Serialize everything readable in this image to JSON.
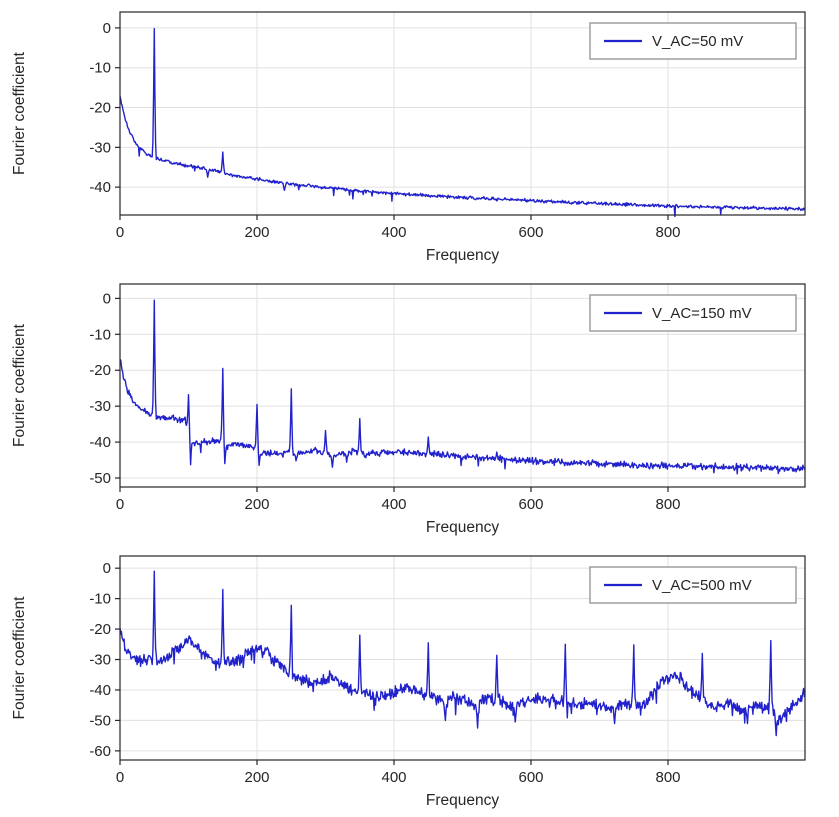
{
  "style": {
    "background": "#ffffff",
    "line_color": "#2222cc",
    "grid_color": "#e0e0e0",
    "axis_color": "#262626",
    "text_color": "#262626",
    "legend_border": "#909090",
    "legend_fill": "#ffffff"
  },
  "chart_data": [
    {
      "type": "line",
      "legend_label": "V_AC=50 mV",
      "xlabel": "Frequency",
      "ylabel": "Fourier coefficient",
      "xlim": [
        0,
        1000
      ],
      "ylim": [
        -47,
        4
      ],
      "xticks": [
        0,
        200,
        400,
        600,
        800
      ],
      "yticks": [
        0,
        -10,
        -20,
        -30,
        -40
      ],
      "grid": true,
      "legend_position": "top-right",
      "seed": 11,
      "noise": 0.5,
      "dip_prob": 0.015,
      "dip_depth": 2.5,
      "baseline": [
        [
          0,
          -17
        ],
        [
          3,
          -19.5
        ],
        [
          8,
          -23
        ],
        [
          15,
          -26.5
        ],
        [
          25,
          -29.5
        ],
        [
          38,
          -31.5
        ],
        [
          48,
          -32.5
        ],
        [
          60,
          -33.2
        ],
        [
          80,
          -34
        ],
        [
          100,
          -34.6
        ],
        [
          120,
          -35.2
        ],
        [
          140,
          -36
        ],
        [
          160,
          -36.8
        ],
        [
          180,
          -37.4
        ],
        [
          200,
          -38
        ],
        [
          230,
          -38.8
        ],
        [
          260,
          -39.4
        ],
        [
          300,
          -40.1
        ],
        [
          350,
          -40.9
        ],
        [
          400,
          -41.6
        ],
        [
          450,
          -42.1
        ],
        [
          500,
          -42.6
        ],
        [
          550,
          -43
        ],
        [
          600,
          -43.4
        ],
        [
          650,
          -43.8
        ],
        [
          700,
          -44.1
        ],
        [
          750,
          -44.4
        ],
        [
          800,
          -44.7
        ],
        [
          850,
          -44.9
        ],
        [
          900,
          -45.1
        ],
        [
          950,
          -45.3
        ],
        [
          1000,
          -45.5
        ]
      ],
      "peaks": [
        [
          50,
          -0.2
        ],
        [
          150,
          -31.2
        ]
      ],
      "dips": [
        [
          128,
          -37.5
        ],
        [
          240,
          -40.8
        ]
      ]
    },
    {
      "type": "line",
      "legend_label": "V_AC=150 mV",
      "xlabel": "Frequency",
      "ylabel": "Fourier coefficient",
      "xlim": [
        0,
        1000
      ],
      "ylim": [
        -52.5,
        4
      ],
      "xticks": [
        0,
        200,
        400,
        600,
        800
      ],
      "yticks": [
        0,
        -10,
        -20,
        -30,
        -40,
        -50
      ],
      "grid": true,
      "legend_position": "top-right",
      "seed": 22,
      "noise": 1.1,
      "dip_prob": 0.02,
      "dip_depth": 3,
      "baseline": [
        [
          0,
          -17
        ],
        [
          4,
          -21
        ],
        [
          10,
          -25
        ],
        [
          18,
          -28
        ],
        [
          28,
          -30.5
        ],
        [
          40,
          -32
        ],
        [
          55,
          -33
        ],
        [
          70,
          -33.3
        ],
        [
          85,
          -33.6
        ],
        [
          96,
          -34
        ],
        [
          106,
          -40.5
        ],
        [
          120,
          -40
        ],
        [
          135,
          -39.5
        ],
        [
          148,
          -39.8
        ],
        [
          157,
          -41
        ],
        [
          170,
          -40.5
        ],
        [
          185,
          -41
        ],
        [
          196,
          -41.5
        ],
        [
          206,
          -43.5
        ],
        [
          220,
          -43
        ],
        [
          235,
          -43.5
        ],
        [
          246,
          -42.5
        ],
        [
          256,
          -43.5
        ],
        [
          270,
          -42.8
        ],
        [
          285,
          -42.3
        ],
        [
          298,
          -43
        ],
        [
          312,
          -44
        ],
        [
          325,
          -43
        ],
        [
          340,
          -42.6
        ],
        [
          356,
          -43.5
        ],
        [
          375,
          -43
        ],
        [
          400,
          -42.6
        ],
        [
          430,
          -43
        ],
        [
          460,
          -43.4
        ],
        [
          500,
          -44
        ],
        [
          540,
          -44.5
        ],
        [
          580,
          -45
        ],
        [
          620,
          -45.4
        ],
        [
          660,
          -45.7
        ],
        [
          700,
          -46
        ],
        [
          750,
          -46.3
        ],
        [
          800,
          -46.6
        ],
        [
          850,
          -46.8
        ],
        [
          900,
          -47
        ],
        [
          950,
          -47.2
        ],
        [
          1000,
          -47.5
        ]
      ],
      "peaks": [
        [
          50,
          -0.5
        ],
        [
          100,
          -26.8
        ],
        [
          150,
          -19.5
        ],
        [
          200,
          -29.5
        ],
        [
          250,
          -25.2
        ],
        [
          300,
          -36.8
        ],
        [
          350,
          -33.5
        ],
        [
          450,
          -38.6
        ],
        [
          550,
          -42.8
        ]
      ],
      "dips": [
        [
          103,
          -46.3
        ],
        [
          153,
          -46
        ],
        [
          203,
          -46.5
        ],
        [
          257,
          -45.2
        ],
        [
          310,
          -47
        ],
        [
          331,
          -45.6
        ]
      ]
    },
    {
      "type": "line",
      "legend_label": "V_AC=500 mV",
      "xlabel": "Frequency",
      "ylabel": "Fourier coefficient",
      "xlim": [
        0,
        1000
      ],
      "ylim": [
        -63,
        4
      ],
      "xticks": [
        0,
        200,
        400,
        600,
        800
      ],
      "yticks": [
        0,
        -10,
        -20,
        -30,
        -40,
        -50,
        -60
      ],
      "grid": true,
      "legend_position": "top-right",
      "seed": 33,
      "noise": 2.3,
      "dip_prob": 0.05,
      "dip_depth": 5,
      "baseline": [
        [
          0,
          -20
        ],
        [
          5,
          -24
        ],
        [
          12,
          -27.5
        ],
        [
          20,
          -29.5
        ],
        [
          30,
          -30.5
        ],
        [
          42,
          -30
        ],
        [
          55,
          -30.5
        ],
        [
          68,
          -29.5
        ],
        [
          80,
          -27.5
        ],
        [
          92,
          -24.5
        ],
        [
          102,
          -23.8
        ],
        [
          112,
          -25.5
        ],
        [
          125,
          -28.5
        ],
        [
          138,
          -30.5
        ],
        [
          150,
          -31.5
        ],
        [
          162,
          -31
        ],
        [
          175,
          -29.5
        ],
        [
          188,
          -27.5
        ],
        [
          200,
          -26.5
        ],
        [
          212,
          -27.5
        ],
        [
          225,
          -30
        ],
        [
          238,
          -32.5
        ],
        [
          252,
          -35
        ],
        [
          265,
          -36.5
        ],
        [
          280,
          -37.5
        ],
        [
          295,
          -37
        ],
        [
          308,
          -35.5
        ],
        [
          322,
          -38
        ],
        [
          338,
          -40
        ],
        [
          355,
          -41
        ],
        [
          375,
          -42
        ],
        [
          395,
          -41.5
        ],
        [
          415,
          -39.5
        ],
        [
          435,
          -41
        ],
        [
          455,
          -42
        ],
        [
          475,
          -43
        ],
        [
          495,
          -42.5
        ],
        [
          515,
          -44.5
        ],
        [
          535,
          -43
        ],
        [
          555,
          -43.5
        ],
        [
          575,
          -45
        ],
        [
          595,
          -43.5
        ],
        [
          615,
          -42.5
        ],
        [
          640,
          -43.5
        ],
        [
          665,
          -45
        ],
        [
          690,
          -44
        ],
        [
          715,
          -46
        ],
        [
          740,
          -44
        ],
        [
          765,
          -45.5
        ],
        [
          788,
          -38
        ],
        [
          805,
          -34.5
        ],
        [
          818,
          -36
        ],
        [
          832,
          -39.5
        ],
        [
          848,
          -43
        ],
        [
          868,
          -45.5
        ],
        [
          888,
          -44.5
        ],
        [
          908,
          -46.5
        ],
        [
          928,
          -45.5
        ],
        [
          948,
          -46.5
        ],
        [
          965,
          -49
        ],
        [
          982,
          -45
        ],
        [
          1000,
          -41
        ]
      ],
      "peaks": [
        [
          50,
          -1
        ],
        [
          150,
          -7
        ],
        [
          250,
          -12.2
        ],
        [
          350,
          -22
        ],
        [
          450,
          -24.5
        ],
        [
          550,
          -28.6
        ],
        [
          650,
          -25
        ],
        [
          750,
          -25.2
        ],
        [
          850,
          -28
        ],
        [
          950,
          -23.8
        ]
      ],
      "dips": [
        [
          475,
          -50
        ],
        [
          522,
          -52.5
        ],
        [
          577,
          -50.5
        ],
        [
          722,
          -51
        ],
        [
          916,
          -51
        ],
        [
          958,
          -55
        ]
      ]
    }
  ]
}
